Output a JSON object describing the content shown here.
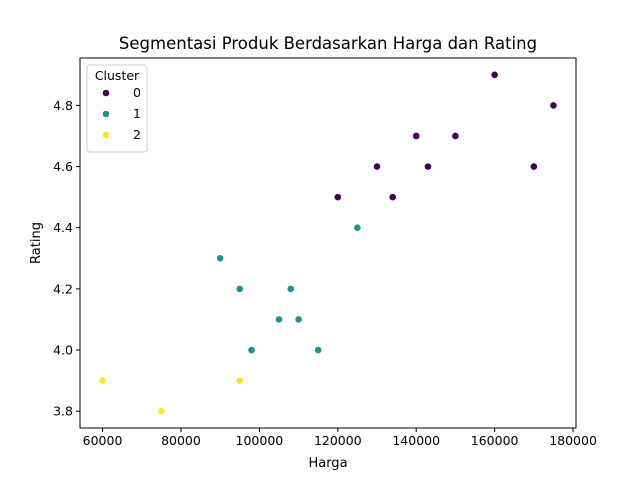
{
  "chart_data": {
    "type": "scatter",
    "title": "Segmentasi Produk Berdasarkan Harga dan Rating",
    "xlabel": "Harga",
    "ylabel": "Rating",
    "xlim": [
      54250,
      180750
    ],
    "ylim": [
      3.745,
      4.955
    ],
    "xticks": [
      60000,
      80000,
      100000,
      120000,
      140000,
      160000,
      180000
    ],
    "yticks": [
      3.8,
      4.0,
      4.2,
      4.4,
      4.6,
      4.8
    ],
    "grid": false,
    "legend": {
      "title": "Cluster",
      "placement": "top-left",
      "entries": [
        "0",
        "1",
        "2"
      ]
    },
    "series": [
      {
        "name": "0",
        "color": "#440154",
        "points": [
          {
            "x": 120000,
            "y": 4.5
          },
          {
            "x": 130000,
            "y": 4.6
          },
          {
            "x": 134000,
            "y": 4.5
          },
          {
            "x": 140000,
            "y": 4.7
          },
          {
            "x": 143000,
            "y": 4.6
          },
          {
            "x": 150000,
            "y": 4.7
          },
          {
            "x": 160000,
            "y": 4.9
          },
          {
            "x": 170000,
            "y": 4.6
          },
          {
            "x": 175000,
            "y": 4.8
          }
        ]
      },
      {
        "name": "1",
        "color": "#21918c",
        "points": [
          {
            "x": 90000,
            "y": 4.3
          },
          {
            "x": 95000,
            "y": 4.2
          },
          {
            "x": 98000,
            "y": 4.0
          },
          {
            "x": 105000,
            "y": 4.1
          },
          {
            "x": 108000,
            "y": 4.2
          },
          {
            "x": 110000,
            "y": 4.1
          },
          {
            "x": 115000,
            "y": 4.0
          },
          {
            "x": 125000,
            "y": 4.4
          }
        ]
      },
      {
        "name": "2",
        "color": "#fde725",
        "points": [
          {
            "x": 60000,
            "y": 3.9
          },
          {
            "x": 75000,
            "y": 3.8
          },
          {
            "x": 95000,
            "y": 3.9
          }
        ]
      }
    ]
  }
}
